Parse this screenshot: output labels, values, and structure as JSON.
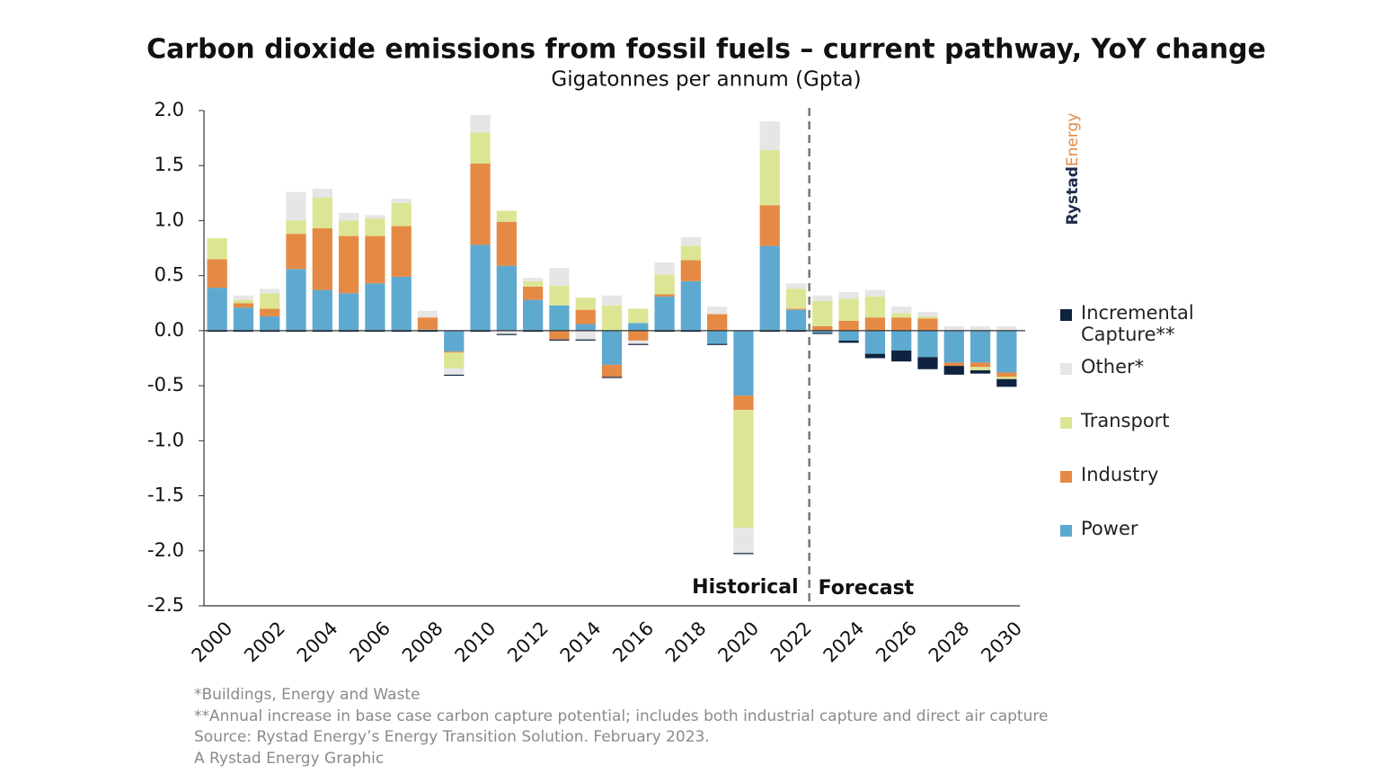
{
  "chart_data": {
    "type": "stacked_bar",
    "title": "Carbon dioxide emissions from fossil fuels – current pathway, YoY change",
    "subtitle": "Gigatonnes per annum (Gpta)",
    "categories": [
      "2000",
      null,
      "2002",
      null,
      "2004",
      null,
      "2006",
      null,
      "2008",
      null,
      "2010",
      null,
      "2012",
      null,
      "2014",
      null,
      "2016",
      null,
      "2018",
      null,
      "2020",
      null,
      "2022",
      null,
      "2024",
      null,
      "2026",
      null,
      "2028",
      null,
      "2030"
    ],
    "series": [
      {
        "name": "Power",
        "color": "#5ea9d0",
        "values": [
          0.39,
          0.21,
          0.13,
          0.56,
          0.37,
          0.34,
          0.43,
          0.49,
          0.01,
          -0.19,
          0.78,
          0.59,
          0.28,
          0.23,
          0.06,
          -0.31,
          0.07,
          0.31,
          0.45,
          -0.12,
          -0.59,
          0.77,
          0.19,
          -0.02,
          -0.09,
          -0.21,
          -0.18,
          -0.24,
          -0.29,
          -0.29,
          -0.38
        ]
      },
      {
        "name": "Industry",
        "color": "#e58a45",
        "values": [
          0.26,
          0.04,
          0.07,
          0.32,
          0.56,
          0.52,
          0.43,
          0.46,
          0.11,
          -0.01,
          0.74,
          0.4,
          0.12,
          -0.08,
          0.13,
          -0.11,
          -0.09,
          0.02,
          0.19,
          0.15,
          -0.13,
          0.37,
          0.01,
          0.04,
          0.09,
          0.12,
          0.12,
          0.11,
          -0.03,
          -0.04,
          -0.04
        ]
      },
      {
        "name": "Transport",
        "color": "#dce594",
        "values": [
          0.19,
          0.03,
          0.14,
          0.12,
          0.28,
          0.14,
          0.16,
          0.21,
          0,
          -0.14,
          0.28,
          0.1,
          0.05,
          0.18,
          0.11,
          0.23,
          0.13,
          0.18,
          0.13,
          0,
          -1.07,
          0.5,
          0.18,
          0.23,
          0.2,
          0.19,
          0.04,
          0.02,
          0,
          -0.03,
          -0.02
        ]
      },
      {
        "name": "Other*",
        "color": "#e6e6e6",
        "values": [
          0,
          0.04,
          0.04,
          0.26,
          0.08,
          0.07,
          0.03,
          0.04,
          0.06,
          -0.06,
          0.16,
          -0.03,
          0.03,
          0.16,
          -0.08,
          0.09,
          -0.03,
          0.11,
          0.08,
          0.07,
          -0.23,
          0.26,
          0.05,
          0.05,
          0.06,
          0.06,
          0.06,
          0.04,
          0.04,
          0.04,
          0.04
        ]
      },
      {
        "name": "Incremental Capture**",
        "color": "#0f2340",
        "values": [
          -0.01,
          -0.01,
          -0.01,
          -0.01,
          -0.01,
          -0.01,
          -0.01,
          -0.01,
          -0.01,
          -0.01,
          -0.01,
          -0.01,
          -0.01,
          -0.01,
          -0.01,
          -0.01,
          -0.01,
          -0.01,
          -0.01,
          -0.01,
          -0.01,
          -0.01,
          -0.01,
          -0.01,
          -0.02,
          -0.04,
          -0.1,
          -0.11,
          -0.08,
          -0.03,
          -0.07
        ]
      }
    ],
    "ylim": [
      -2.5,
      2.0
    ],
    "yticks": [
      {
        "value": -2.5,
        "label": "-2.5"
      },
      {
        "value": -2,
        "label": "-2.0"
      },
      {
        "value": -1.5,
        "label": "-1.5"
      },
      {
        "value": -1,
        "label": "-1.0"
      },
      {
        "value": -0.5,
        "label": "-0.5"
      },
      {
        "value": 0,
        "label": "0.0"
      },
      {
        "value": 0.5,
        "label": "0.5"
      },
      {
        "value": 1,
        "label": "1.0"
      },
      {
        "value": 1.5,
        "label": "1.5"
      },
      {
        "value": 2,
        "label": "2.0"
      }
    ],
    "annotations": [
      "Historical",
      "Forecast"
    ],
    "logo": {
      "first": "Rystad",
      "second": "Energy"
    },
    "footnotes": [
      "*Buildings, Energy and Waste",
      "**Annual increase in base case carbon capture potential; includes both industrial capture and direct air capture",
      "Source: Rystad Energy’s Energy Transition Solution. February 2023.",
      "A Rystad Energy Graphic"
    ]
  }
}
